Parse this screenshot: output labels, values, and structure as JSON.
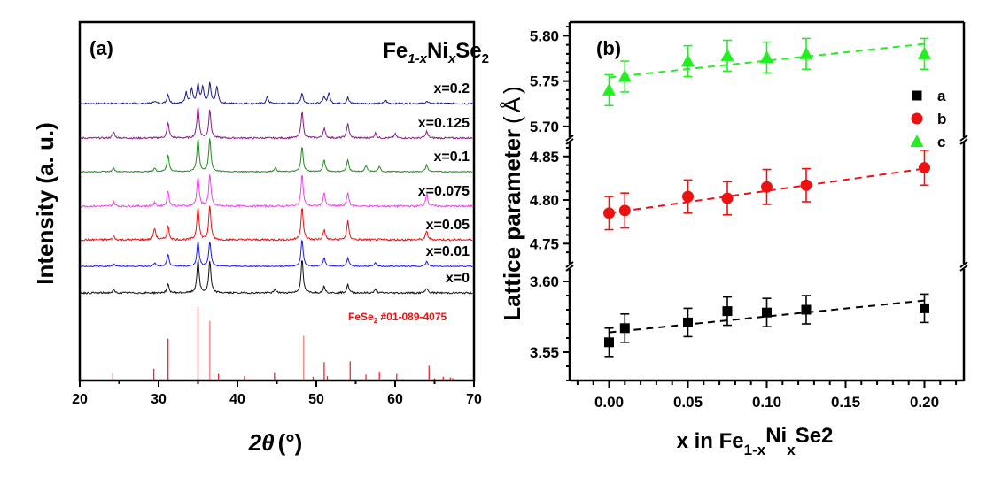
{
  "chart_data": [
    {
      "panel": "(a)",
      "type": "line",
      "title": "Fe1-xNixSe2",
      "title_parts": {
        "a": "Fe",
        "a_sub": "1-x",
        "b": "Ni",
        "b_sub": "x",
        "c": "Se",
        "c_sub": "2"
      },
      "xlabel": "2θ (°)",
      "xlabel_parts": {
        "main": "2θ",
        "unit": "(°)"
      },
      "ylabel": "Intensity (a. u.)",
      "xlim": [
        20,
        70
      ],
      "xticks": [
        20,
        30,
        40,
        50,
        60,
        70
      ],
      "yticks_shown": false,
      "series": [
        {
          "name": "x=0.2",
          "color": "#1a1a8c",
          "peaks": [
            [
              29.5,
              0.1
            ],
            [
              31.2,
              0.35
            ],
            [
              33.5,
              0.4
            ],
            [
              34.2,
              0.55
            ],
            [
              35.0,
              0.7
            ],
            [
              35.6,
              0.6
            ],
            [
              36.5,
              0.75
            ],
            [
              37.4,
              0.65
            ],
            [
              43.8,
              0.25
            ],
            [
              48.2,
              0.4
            ],
            [
              51.0,
              0.25
            ],
            [
              51.6,
              0.4
            ],
            [
              54.0,
              0.22
            ],
            [
              58.8,
              0.12
            ],
            [
              64.0,
              0.08
            ]
          ],
          "noise": 0.06
        },
        {
          "name": "x=0.125",
          "color": "#8b1a8b",
          "peaks": [
            [
              24.3,
              0.18
            ],
            [
              31.2,
              0.45
            ],
            [
              35.0,
              0.95
            ],
            [
              36.5,
              0.85
            ],
            [
              48.2,
              0.8
            ],
            [
              51.0,
              0.3
            ],
            [
              54.0,
              0.45
            ],
            [
              57.5,
              0.15
            ],
            [
              60.0,
              0.12
            ],
            [
              64.0,
              0.2
            ]
          ],
          "noise": 0.05
        },
        {
          "name": "x=0.1",
          "color": "#228b22",
          "peaks": [
            [
              24.3,
              0.1
            ],
            [
              29.5,
              0.1
            ],
            [
              31.2,
              0.5
            ],
            [
              35.0,
              1.0
            ],
            [
              36.5,
              1.0
            ],
            [
              44.8,
              0.12
            ],
            [
              48.2,
              0.75
            ],
            [
              51.0,
              0.35
            ],
            [
              54.0,
              0.35
            ],
            [
              56.3,
              0.18
            ],
            [
              58.0,
              0.15
            ],
            [
              64.0,
              0.2
            ]
          ],
          "noise": 0.03
        },
        {
          "name": "x=0.075",
          "color": "#ee44ee",
          "peaks": [
            [
              24.3,
              0.12
            ],
            [
              29.5,
              0.1
            ],
            [
              31.2,
              0.45
            ],
            [
              35.0,
              0.9
            ],
            [
              36.5,
              0.95
            ],
            [
              48.2,
              0.95
            ],
            [
              51.0,
              0.4
            ],
            [
              54.0,
              0.4
            ],
            [
              64.0,
              0.38
            ]
          ],
          "noise": 0.06
        },
        {
          "name": "x=0.05",
          "color": "#ee1111",
          "peaks": [
            [
              24.3,
              0.1
            ],
            [
              29.5,
              0.35
            ],
            [
              31.2,
              0.4
            ],
            [
              35.0,
              1.0
            ],
            [
              36.5,
              1.0
            ],
            [
              48.2,
              1.0
            ],
            [
              51.0,
              0.3
            ],
            [
              54.0,
              0.55
            ],
            [
              64.0,
              0.25
            ]
          ],
          "noise": 0.06
        },
        {
          "name": "x=0.01",
          "color": "#1a1aee",
          "peaks": [
            [
              24.3,
              0.08
            ],
            [
              29.5,
              0.1
            ],
            [
              31.2,
              0.35
            ],
            [
              35.0,
              0.75
            ],
            [
              36.5,
              0.75
            ],
            [
              48.2,
              0.8
            ],
            [
              51.0,
              0.25
            ],
            [
              54.0,
              0.25
            ],
            [
              57.5,
              0.1
            ],
            [
              64.0,
              0.15
            ]
          ],
          "noise": 0.03
        },
        {
          "name": "x=0",
          "color": "#111111",
          "peaks": [
            [
              24.3,
              0.08
            ],
            [
              31.2,
              0.25
            ],
            [
              35.0,
              1.0
            ],
            [
              36.5,
              0.95
            ],
            [
              44.8,
              0.1
            ],
            [
              48.2,
              1.0
            ],
            [
              51.0,
              0.2
            ],
            [
              54.0,
              0.25
            ],
            [
              57.5,
              0.1
            ],
            [
              64.0,
              0.15
            ]
          ],
          "noise": 0.05
        }
      ],
      "reference": {
        "name": "FeSe2 #01-089-4075",
        "label_main": "FeSe",
        "label_sub": "2",
        "label_rest": " #01-089-4075",
        "color": "#ee1111",
        "sticks": [
          [
            24.2,
            0.1
          ],
          [
            29.4,
            0.16
          ],
          [
            31.2,
            0.57
          ],
          [
            35.0,
            1.0
          ],
          [
            36.5,
            0.81
          ],
          [
            37.6,
            0.09
          ],
          [
            40.9,
            0.06
          ],
          [
            44.7,
            0.11
          ],
          [
            48.4,
            0.61
          ],
          [
            49.6,
            0.05
          ],
          [
            51.0,
            0.25
          ],
          [
            51.4,
            0.06
          ],
          [
            54.3,
            0.26
          ],
          [
            56.3,
            0.08
          ],
          [
            58.0,
            0.12
          ],
          [
            60.2,
            0.09
          ],
          [
            61.0,
            0.02
          ],
          [
            64.3,
            0.2
          ],
          [
            65.0,
            0.03
          ],
          [
            66.1,
            0.05
          ],
          [
            67.0,
            0.04
          ],
          [
            67.3,
            0.03
          ],
          [
            68.3,
            0.01
          ]
        ]
      }
    },
    {
      "panel": "(b)",
      "type": "scatter",
      "xlabel": "x in Fe1-xNixSe2",
      "xlabel_parts": {
        "a": "x in Fe",
        "a_sub": "1-x",
        "b": "Ni",
        "b_sub": "x",
        "c": "Se2"
      },
      "ylabel": "Lattice parameter (Å)",
      "ylabel_parts": {
        "main": "Lattice parameter",
        "unit": "Å"
      },
      "xlim": [
        -0.025,
        0.225
      ],
      "xticks": [
        0.0,
        0.05,
        0.1,
        0.15,
        0.2
      ],
      "xtick_labels": [
        "0.00",
        "0.05",
        "0.10",
        "0.15",
        "0.20"
      ],
      "broken_y_axis": true,
      "y_segments": [
        {
          "range": [
            3.53,
            3.605
          ],
          "ticks": [
            3.55,
            3.6
          ],
          "tick_labels": [
            "3.55",
            "3.60"
          ]
        },
        {
          "range": [
            4.73,
            4.865
          ],
          "ticks": [
            4.75,
            4.8,
            4.85
          ],
          "tick_labels": [
            "4.75",
            "4.80",
            "4.85"
          ]
        },
        {
          "range": [
            5.695,
            5.815
          ],
          "ticks": [
            5.7,
            5.75,
            5.8
          ],
          "tick_labels": [
            "5.70",
            "5.75",
            "5.80"
          ]
        }
      ],
      "x": [
        0.0,
        0.01,
        0.05,
        0.075,
        0.1,
        0.125,
        0.2
      ],
      "series": [
        {
          "name": "a",
          "marker": "square",
          "color": "#000000",
          "segment": 0,
          "values": [
            3.557,
            3.567,
            3.571,
            3.579,
            3.578,
            3.58,
            3.581
          ],
          "errors": [
            0.01,
            0.01,
            0.01,
            0.01,
            0.01,
            0.01,
            0.01
          ],
          "fit": [
            3.564,
            3.5865
          ]
        },
        {
          "name": "b",
          "marker": "circle",
          "color": "#ee1111",
          "segment": 1,
          "values": [
            4.785,
            4.788,
            4.804,
            4.802,
            4.815,
            4.817,
            4.837
          ],
          "errors": [
            0.019,
            0.02,
            0.019,
            0.019,
            0.02,
            0.019,
            0.02
          ],
          "fit": [
            4.785,
            4.836
          ]
        },
        {
          "name": "c",
          "marker": "triangle",
          "color": "#22ee22",
          "segment": 2,
          "values": [
            5.74,
            5.755,
            5.772,
            5.778,
            5.776,
            5.78,
            5.78
          ],
          "errors": [
            0.017,
            0.017,
            0.017,
            0.017,
            0.017,
            0.017,
            0.017
          ],
          "fit": [
            5.754,
            5.791
          ]
        }
      ],
      "legend": {
        "position": "right-middle",
        "entries": [
          "a",
          "b",
          "c"
        ]
      }
    }
  ]
}
